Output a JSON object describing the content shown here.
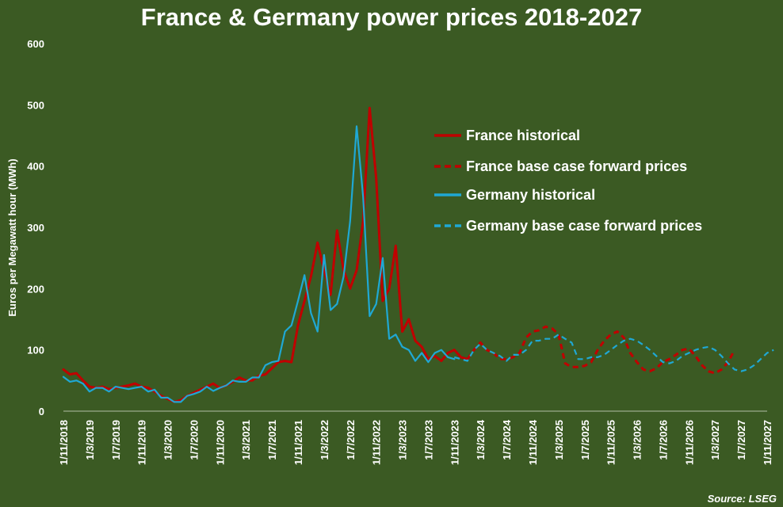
{
  "chart_data": {
    "type": "line",
    "title": "France & Germany power prices 2018-2027",
    "xlabel": "",
    "ylabel": "Euros per Megawatt hour (MWh)",
    "ylim": [
      0,
      600
    ],
    "yticks": [
      0,
      100,
      200,
      300,
      400,
      500,
      600
    ],
    "x_start": "2018-11",
    "x_end": "2027-11",
    "xticks": [
      "1/11/2018",
      "1/3/2019",
      "1/7/2019",
      "1/11/2019",
      "1/3/2020",
      "1/7/2020",
      "1/11/2020",
      "1/3/2021",
      "1/7/2021",
      "1/11/2021",
      "1/3/2022",
      "1/7/2022",
      "1/11/2022",
      "1/3/2023",
      "1/7/2023",
      "1/11/2023",
      "1/3/2024",
      "1/7/2024",
      "1/11/2024",
      "1/3/2025",
      "1/7/2025",
      "1/11/2025",
      "1/3/2026",
      "1/7/2026",
      "1/11/2026",
      "1/3/2027",
      "1/7/2027",
      "1/11/2027"
    ],
    "grid": false,
    "legend_position": "right",
    "source": "Source: LSEG",
    "series": [
      {
        "name": "France historical",
        "color": "#c00000",
        "style": "solid",
        "start_month": 0,
        "values": [
          68,
          60,
          62,
          50,
          40,
          38,
          40,
          36,
          38,
          40,
          42,
          45,
          40,
          38,
          32,
          25,
          20,
          15,
          18,
          25,
          30,
          35,
          40,
          45,
          38,
          42,
          48,
          55,
          50,
          50,
          58,
          60,
          70,
          80,
          82,
          80,
          140,
          180,
          220,
          275,
          230,
          190,
          295,
          230,
          200,
          230,
          310,
          495,
          380,
          180,
          200,
          270,
          130,
          150,
          115,
          105,
          85,
          90,
          82,
          95,
          100,
          88,
          85
        ]
      },
      {
        "name": "France base case forward prices",
        "color": "#c00000",
        "style": "dashed",
        "start_month": 62,
        "values": [
          85,
          100,
          112,
          100,
          95,
          85,
          85,
          88,
          95,
          120,
          130,
          132,
          138,
          135,
          125,
          78,
          72,
          72,
          74,
          80,
          100,
          115,
          125,
          130,
          120,
          95,
          80,
          68,
          65,
          70,
          80,
          85,
          92,
          100,
          102,
          90,
          75,
          65,
          62,
          68,
          80,
          100
        ]
      },
      {
        "name": "Germany historical",
        "color": "#1fa8d4",
        "style": "solid",
        "start_month": 0,
        "values": [
          56,
          48,
          50,
          45,
          32,
          38,
          38,
          32,
          40,
          38,
          36,
          38,
          40,
          32,
          35,
          22,
          22,
          15,
          15,
          25,
          28,
          32,
          40,
          33,
          38,
          42,
          50,
          48,
          48,
          55,
          55,
          75,
          80,
          82,
          130,
          140,
          180,
          222,
          160,
          130,
          255,
          165,
          175,
          220,
          310,
          465,
          350,
          155,
          175,
          250,
          118,
          125,
          105,
          100,
          82,
          95,
          80,
          95,
          100,
          88,
          85
        ]
      },
      {
        "name": "Germany base case forward prices",
        "color": "#1fa8d4",
        "style": "dashed",
        "start_month": 60,
        "values": [
          88,
          85,
          82,
          100,
          110,
          100,
          95,
          90,
          82,
          92,
          92,
          100,
          115,
          115,
          118,
          118,
          125,
          118,
          112,
          85,
          85,
          88,
          88,
          92,
          100,
          108,
          115,
          118,
          115,
          108,
          100,
          90,
          80,
          78,
          82,
          90,
          95,
          100,
          103,
          105,
          100,
          90,
          78,
          68,
          65,
          68,
          75,
          85,
          95,
          100
        ]
      }
    ]
  }
}
